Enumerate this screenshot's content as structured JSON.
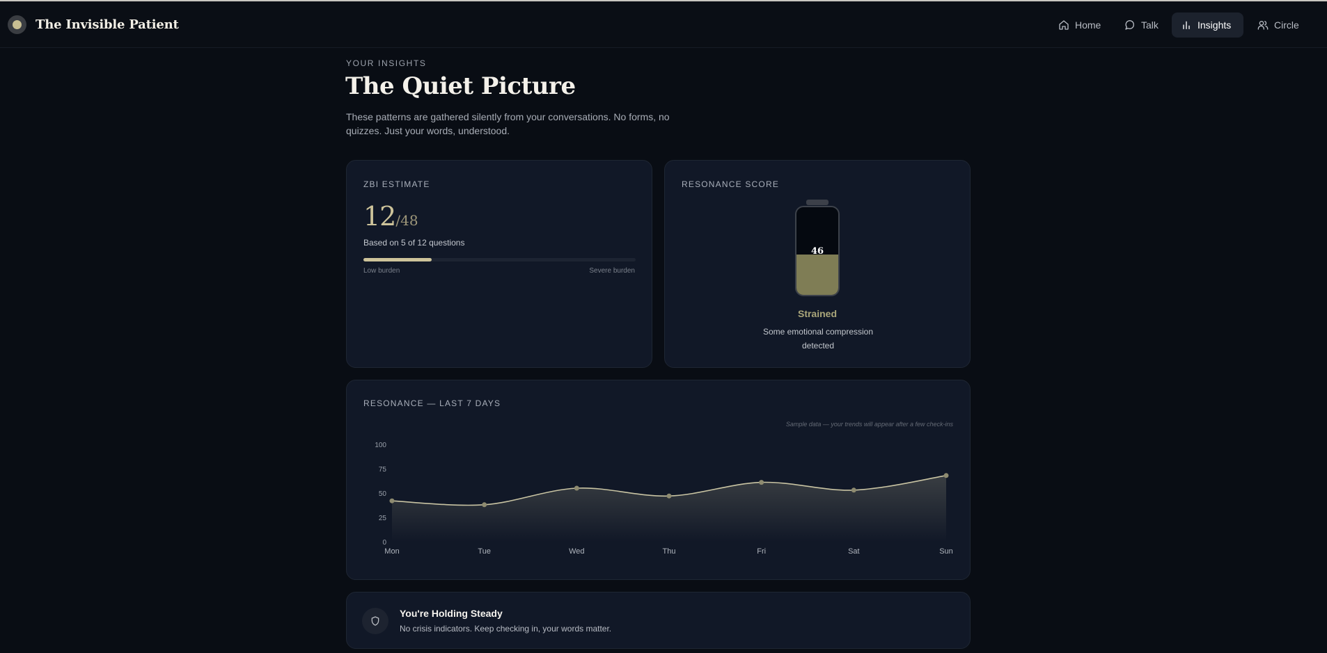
{
  "brand": {
    "name": "The Invisible Patient"
  },
  "nav": {
    "items": [
      {
        "label": "Home",
        "icon": "home-icon"
      },
      {
        "label": "Talk",
        "icon": "chat-icon"
      },
      {
        "label": "Insights",
        "icon": "bar-chart-icon",
        "active": true
      },
      {
        "label": "Circle",
        "icon": "users-icon"
      }
    ]
  },
  "header": {
    "eyebrow": "YOUR INSIGHTS",
    "title": "The Quiet Picture",
    "description": "These patterns are gathered silently from your conversations. No forms, no quizzes. Just your words, understood."
  },
  "zbi": {
    "label": "ZBI ESTIMATE",
    "value": "12",
    "max": "/48",
    "basis": "Based on 5 of 12 questions",
    "progress": 0.25,
    "low_label": "Low burden",
    "high_label": "Severe burden",
    "accent": "#cdc39a"
  },
  "resonance": {
    "label": "RESONANCE SCORE",
    "score": "46",
    "level": 0.46,
    "state": "Strained",
    "description": "Some emotional compression detected",
    "fill_color": "#7f7d55"
  },
  "trend": {
    "label": "RESONANCE — LAST 7 DAYS",
    "note": "Sample data — your trends will appear after a few check-ins"
  },
  "chart_data": {
    "type": "area",
    "categories": [
      "Mon",
      "Tue",
      "Wed",
      "Thu",
      "Fri",
      "Sat",
      "Sun"
    ],
    "series": [
      {
        "values": [
          42,
          38,
          55,
          47,
          61,
          53,
          68
        ]
      }
    ],
    "yticks": [
      0,
      25,
      50,
      75,
      100
    ],
    "ylim": [
      0,
      100
    ],
    "title": "",
    "xlabel": "",
    "ylabel": "",
    "grid": false,
    "line_color": "#c9c4a3"
  },
  "status": {
    "title": "You're Holding Steady",
    "description": "No crisis indicators. Keep checking in, your words matter.",
    "icon": "shield-icon"
  }
}
